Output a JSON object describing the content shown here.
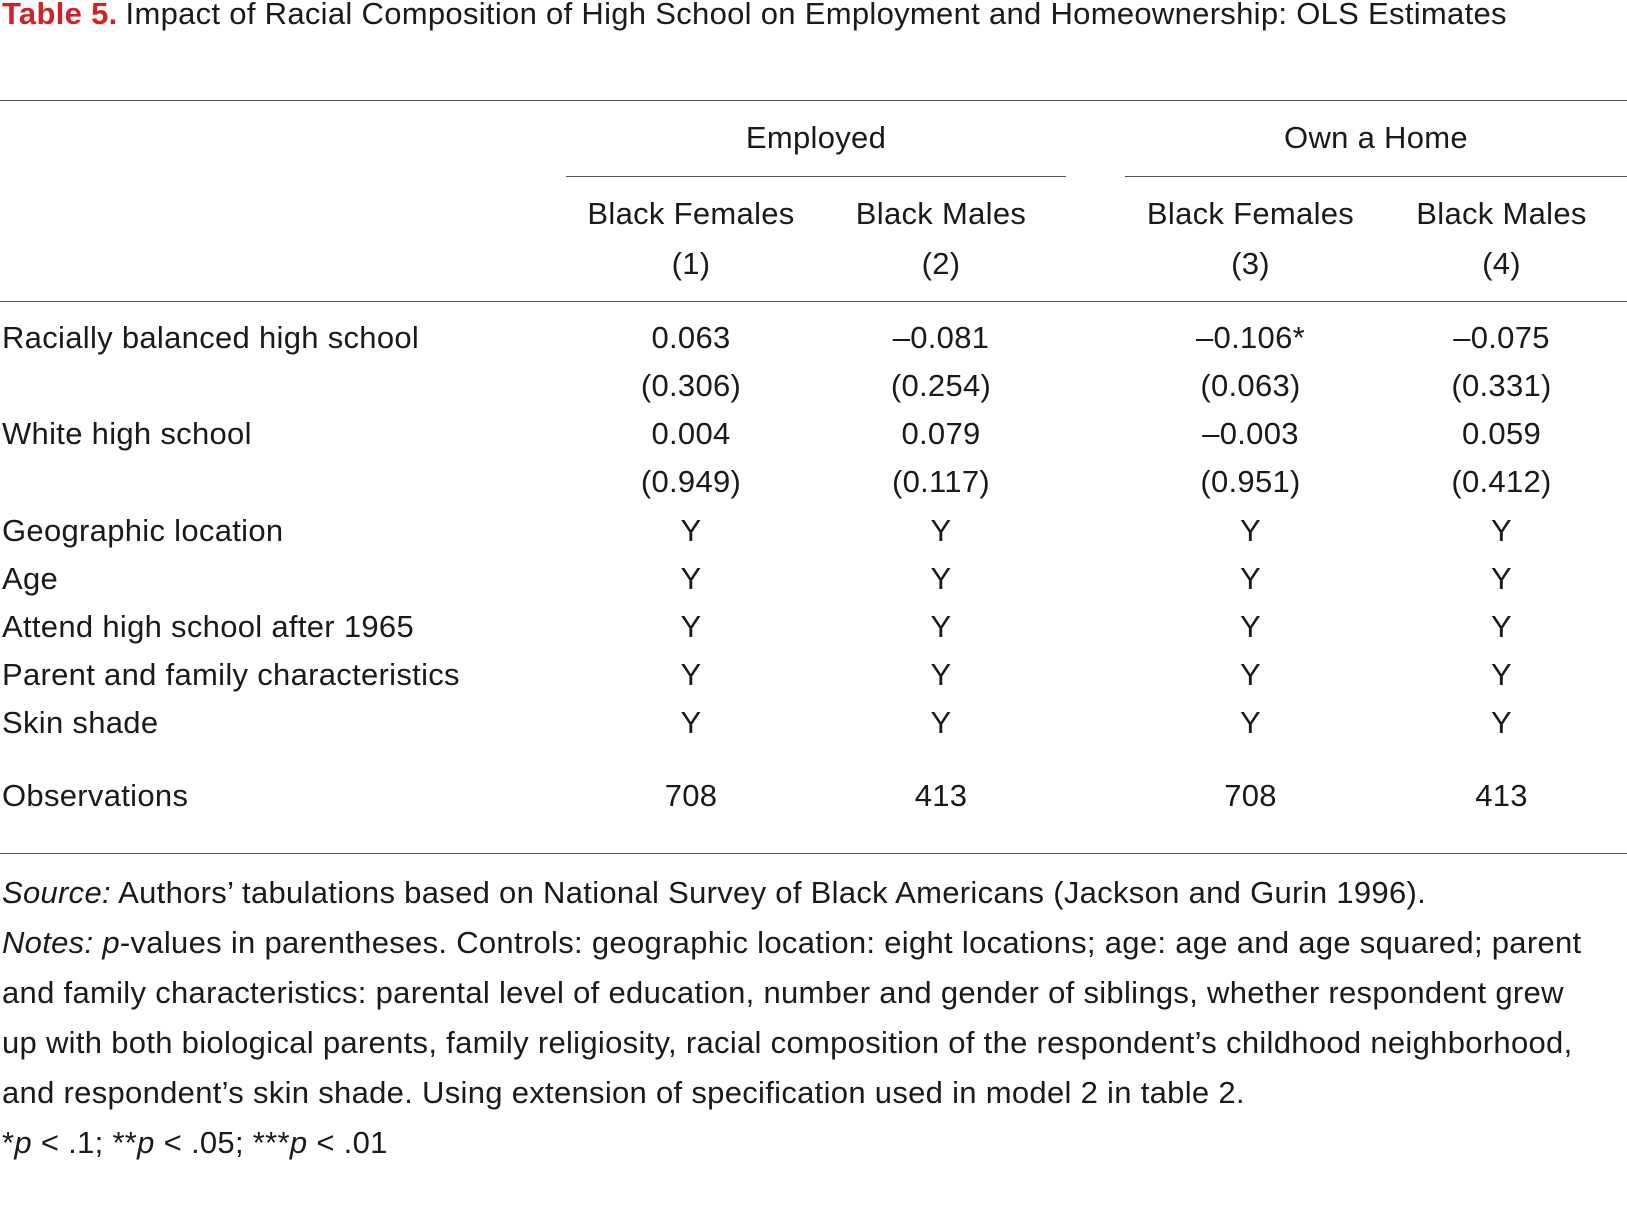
{
  "caption": {
    "label": "Table 5.",
    "title": "Impact of Racial Composition of High School on Employment and Homeownership: OLS Estimates"
  },
  "header": {
    "groups": [
      "Employed",
      "Own a Home"
    ],
    "columns": [
      {
        "name": "Black Females",
        "num": "(1)"
      },
      {
        "name": "Black Males",
        "num": "(2)"
      },
      {
        "name": "Black Females",
        "num": "(3)"
      },
      {
        "name": "Black Males",
        "num": "(4)"
      }
    ]
  },
  "rows": [
    {
      "label": "Racially balanced high school",
      "values": [
        "0.063",
        "–0.081",
        "–0.106*",
        "–0.075"
      ],
      "pvalues": [
        "(0.306)",
        "(0.254)",
        "(0.063)",
        "(0.331)"
      ]
    },
    {
      "label": "White high school",
      "values": [
        "0.004",
        "0.079",
        "–0.003",
        "0.059"
      ],
      "pvalues": [
        "(0.949)",
        "(0.117)",
        "(0.951)",
        "(0.412)"
      ]
    },
    {
      "label": "Geographic location",
      "values": [
        "Y",
        "Y",
        "Y",
        "Y"
      ]
    },
    {
      "label": "Age",
      "values": [
        "Y",
        "Y",
        "Y",
        "Y"
      ]
    },
    {
      "label": "Attend high school after 1965",
      "values": [
        "Y",
        "Y",
        "Y",
        "Y"
      ]
    },
    {
      "label": "Parent and family characteristics",
      "values": [
        "Y",
        "Y",
        "Y",
        "Y"
      ]
    },
    {
      "label": "Skin shade",
      "values": [
        "Y",
        "Y",
        "Y",
        "Y"
      ]
    },
    {
      "label": "Observations",
      "values": [
        "708",
        "413",
        "708",
        "413"
      ]
    }
  ],
  "notes": {
    "source_label": "Source:",
    "source_text": "Authors’ tabulations based on National Survey of Black Americans (Jackson and Gurin 1996).",
    "notes_label": "Notes:",
    "p_letter": "p",
    "notes_text": "-values in parentheses. Controls: geographic location: eight locations; age: age and age squared; parent and family characteristics: parental level of education, number and gender of siblings, whether respondent grew up with both biological parents, family religiosity, racial composition of the respondent’s childhood neighborhood, and respondent’s skin shade. Using extension of specification used in model 2 in table 2.",
    "sig": [
      {
        "stars": "*",
        "p": "p",
        "rest": " < .1; "
      },
      {
        "stars": "**",
        "p": "p",
        "rest": " < .05; "
      },
      {
        "stars": "***",
        "p": "p",
        "rest": " < .01"
      }
    ]
  }
}
